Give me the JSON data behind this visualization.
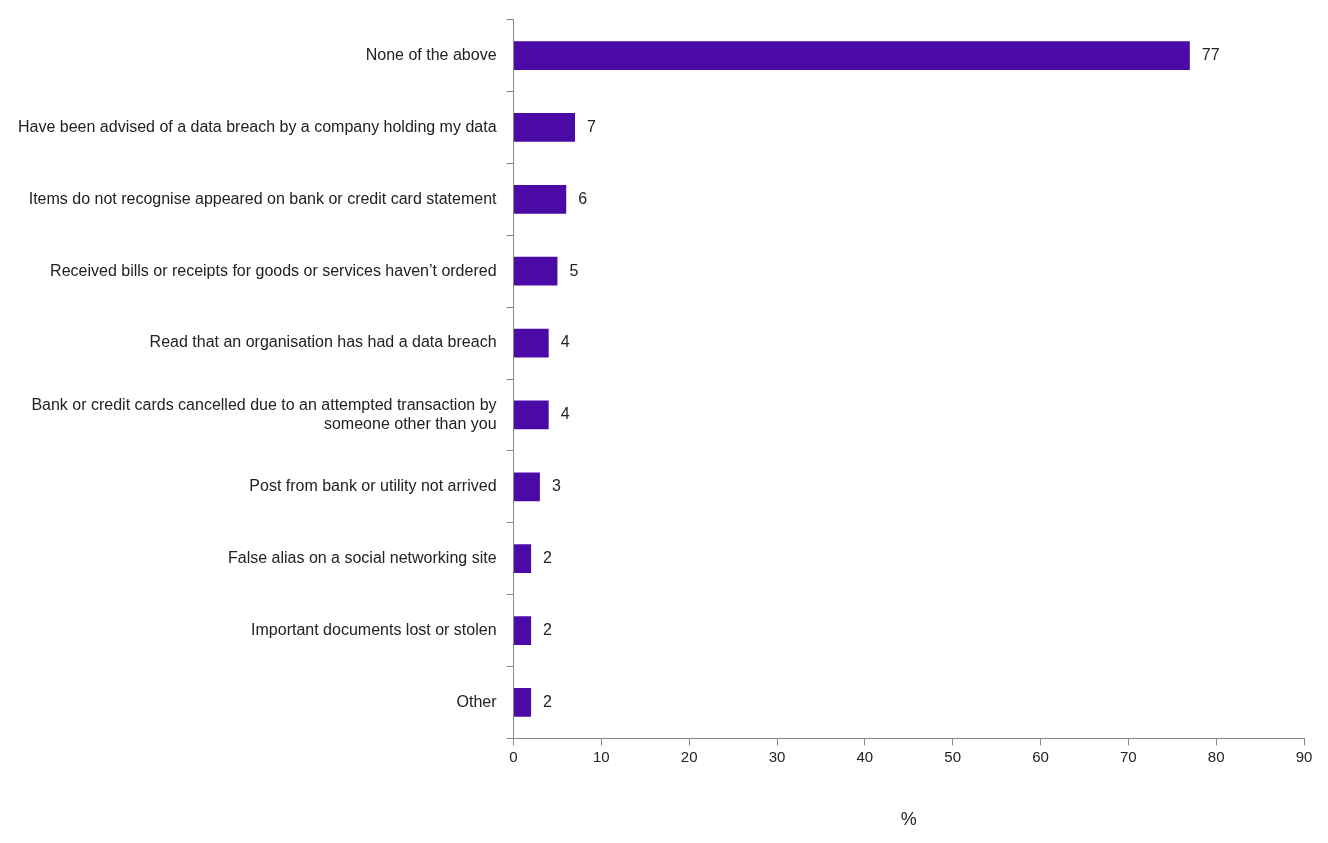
{
  "chart_data": {
    "type": "bar",
    "orientation": "horizontal",
    "xlabel": "%",
    "categories": [
      "None of the above",
      "Have been advised of a data breach by a company holding my data",
      "Items do not recognise appeared on bank or credit card statement",
      "Received bills or receipts for goods or services haven’t ordered",
      "Read that an organisation has had a data breach",
      "Bank or credit cards cancelled due to an attempted transaction by someone other than you",
      "Post from bank or utility not arrived",
      "False alias on a social networking site",
      "Important documents lost or stolen",
      "Other"
    ],
    "values": [
      77,
      7,
      6,
      5,
      4,
      4,
      3,
      2,
      2,
      2
    ],
    "color": "#4b0aa5",
    "xlim": [
      0,
      90
    ],
    "xticks": [
      0,
      10,
      20,
      30,
      40,
      50,
      60,
      70,
      80,
      90
    ],
    "data_labels": true,
    "grid": false,
    "legend": false
  }
}
